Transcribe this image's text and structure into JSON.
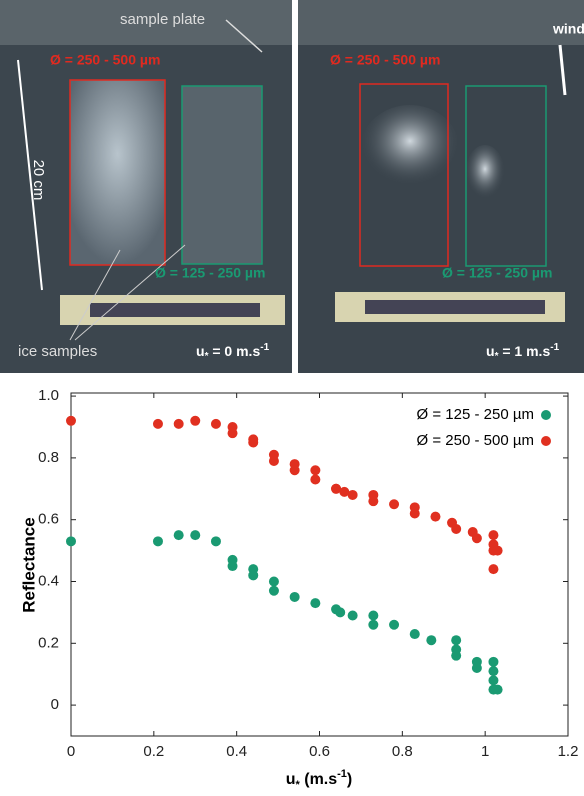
{
  "photos": [
    {
      "plate": "sample plate",
      "coarse": "Ø = 250 - 500 µm",
      "scale": "20 cm",
      "fine": "Ø = 125 - 250 µm",
      "samples": "ice samples",
      "speed": {
        "u": "u",
        "star": "*",
        "eq": " = 0 m.s",
        "exp": "-1"
      }
    },
    {
      "wind": "wind",
      "coarse": "Ø = 250 - 500 µm",
      "fine": "Ø = 125 - 250 µm",
      "speed": {
        "u": "u",
        "star": "*",
        "eq": " = 1 m.s",
        "exp": "-1"
      }
    }
  ],
  "chart_data": {
    "type": "scatter",
    "y_label": "Reflectance",
    "x_label": {
      "u": "u",
      "star": "*",
      "open": " (m.s",
      "exp": "-1",
      "close": ")"
    },
    "xlim": [
      0,
      1.2
    ],
    "xticks": [
      0,
      0.2,
      0.4,
      0.6,
      0.8,
      1,
      1.2
    ],
    "ylim": [
      -0.1,
      1.01
    ],
    "yticks": [
      0,
      0.2,
      0.4,
      0.6,
      0.8,
      {
        "value": 1,
        "label": "1.0"
      }
    ],
    "grid": false,
    "legend": "upper right",
    "series": [
      {
        "name": "Ø = 125 - 250 µm",
        "color": "#1a9a72",
        "x": [
          0,
          0.21,
          0.26,
          0.3,
          0.35,
          0.39,
          0.39,
          0.44,
          0.44,
          0.49,
          0.49,
          0.54,
          0.59,
          0.64,
          0.65,
          0.68,
          0.73,
          0.73,
          0.78,
          0.83,
          0.87,
          0.93,
          0.93,
          0.93,
          0.98,
          0.98,
          1.02,
          1.02,
          1.02,
          1.02,
          1.03
        ],
        "values": [
          0.53,
          0.53,
          0.55,
          0.55,
          0.53,
          0.47,
          0.45,
          0.44,
          0.42,
          0.4,
          0.37,
          0.35,
          0.33,
          0.31,
          0.3,
          0.29,
          0.29,
          0.26,
          0.26,
          0.23,
          0.21,
          0.21,
          0.18,
          0.16,
          0.14,
          0.12,
          0.14,
          0.11,
          0.08,
          0.05,
          0.05
        ]
      },
      {
        "name": "Ø = 250 - 500 µm",
        "color": "#e03020",
        "x": [
          0,
          0.21,
          0.26,
          0.3,
          0.35,
          0.39,
          0.39,
          0.44,
          0.44,
          0.49,
          0.49,
          0.54,
          0.54,
          0.59,
          0.59,
          0.64,
          0.64,
          0.66,
          0.68,
          0.73,
          0.73,
          0.78,
          0.83,
          0.83,
          0.88,
          0.92,
          0.93,
          0.97,
          0.98,
          1.02,
          1.02,
          1.02,
          1.03,
          1.02
        ],
        "values": [
          0.92,
          0.91,
          0.91,
          0.92,
          0.91,
          0.9,
          0.88,
          0.86,
          0.85,
          0.81,
          0.79,
          0.78,
          0.76,
          0.76,
          0.73,
          0.7,
          0.7,
          0.69,
          0.68,
          0.68,
          0.66,
          0.65,
          0.64,
          0.62,
          0.61,
          0.59,
          0.57,
          0.56,
          0.54,
          0.55,
          0.52,
          0.5,
          0.5,
          0.44
        ]
      }
    ]
  }
}
